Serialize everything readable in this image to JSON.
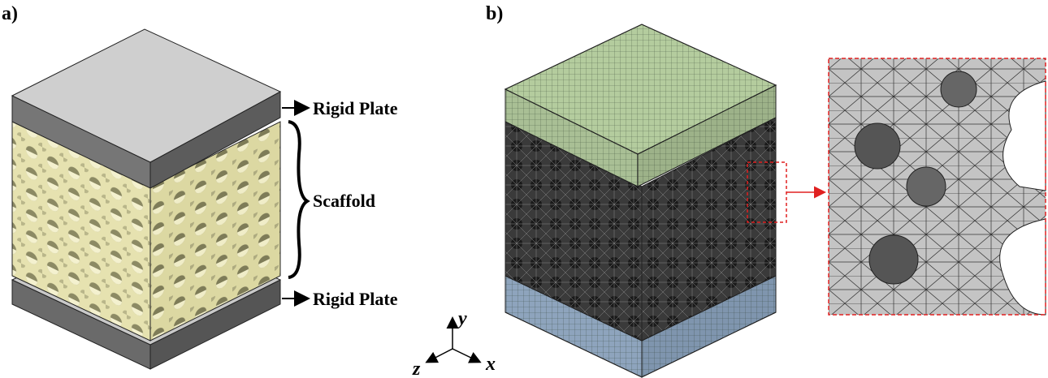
{
  "labels": {
    "panel_a": "a)",
    "panel_b": "b)"
  },
  "annotations": {
    "top_plate": "Rigid Plate",
    "scaffold": "Scaffold",
    "bottom_plate": "Rigid Plate"
  },
  "axes": {
    "y": "y",
    "z": "z",
    "x": "x"
  }
}
